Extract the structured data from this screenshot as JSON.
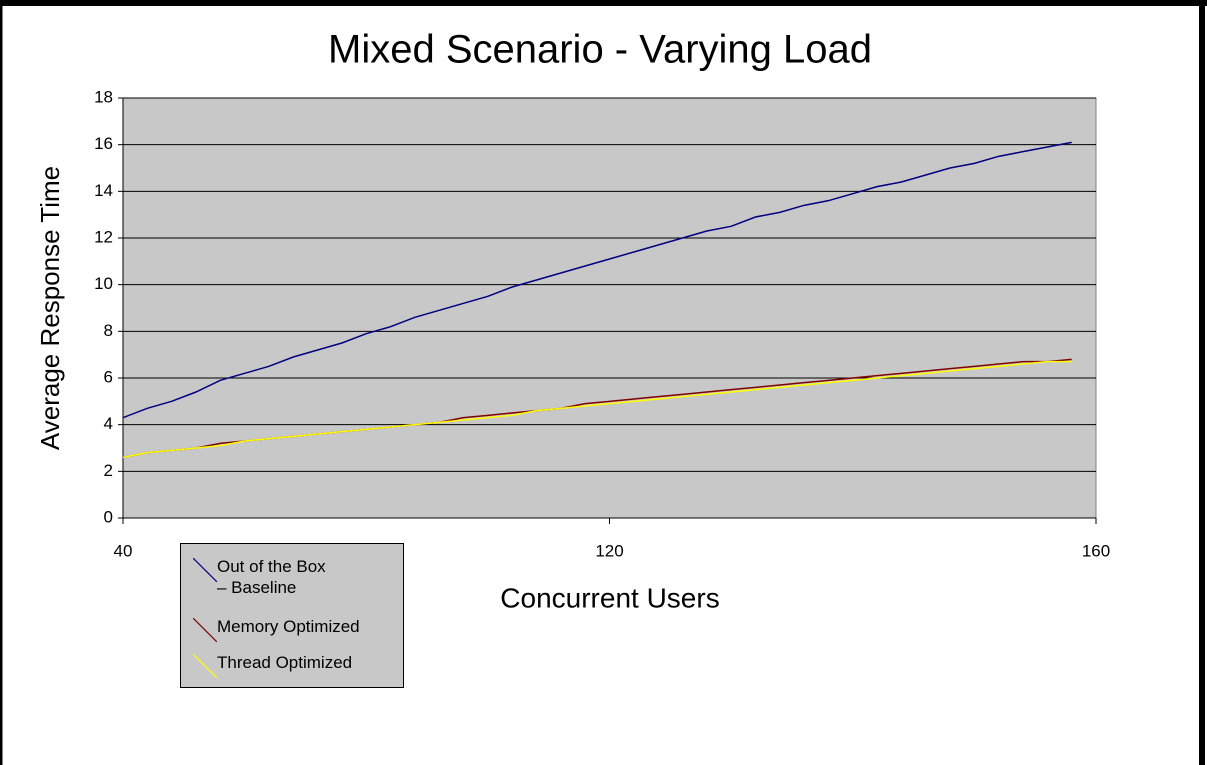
{
  "chart_data": {
    "type": "line",
    "title": "Mixed Scenario - Varying Load",
    "x_label": "Concurrent Users",
    "y_label": "Average Response Time",
    "categories": [
      "40",
      null,
      null,
      null,
      null,
      null,
      null,
      null,
      null,
      null,
      null,
      null,
      null,
      null,
      null,
      null,
      null,
      null,
      null,
      null,
      "120",
      null,
      null,
      null,
      null,
      null,
      null,
      null,
      null,
      null,
      null,
      null,
      null,
      null,
      null,
      null,
      null,
      null,
      null,
      null,
      "160"
    ],
    "series": [
      {
        "name": "Out of the Box – Baseline",
        "color": "#000080",
        "values": [
          4.3,
          4.7,
          5.0,
          5.4,
          5.9,
          6.2,
          6.5,
          6.9,
          7.2,
          7.5,
          7.9,
          8.2,
          8.6,
          8.9,
          9.2,
          9.5,
          9.9,
          10.2,
          10.5,
          10.8,
          11.1,
          11.4,
          11.7,
          12.0,
          12.3,
          12.5,
          12.9,
          13.1,
          13.4,
          13.6,
          13.9,
          14.2,
          14.4,
          14.7,
          15.0,
          15.2,
          15.5,
          15.7,
          15.9,
          16.1,
          null
        ]
      },
      {
        "name": "Memory Optimized",
        "color": "#800000",
        "values": [
          2.6,
          2.8,
          2.9,
          3.0,
          3.2,
          3.3,
          3.4,
          3.5,
          3.6,
          3.7,
          3.8,
          3.9,
          4.0,
          4.1,
          4.3,
          4.4,
          4.5,
          4.6,
          4.7,
          4.9,
          5.0,
          5.1,
          5.2,
          5.3,
          5.4,
          5.5,
          5.6,
          5.7,
          5.8,
          5.9,
          6.0,
          6.1,
          6.2,
          6.3,
          6.4,
          6.5,
          6.6,
          6.7,
          6.7,
          6.8,
          null
        ]
      },
      {
        "name": "Thread Optimized",
        "color": "#ffff00",
        "values": [
          2.6,
          2.8,
          2.9,
          3.0,
          3.1,
          3.3,
          3.4,
          3.5,
          3.6,
          3.7,
          3.8,
          3.9,
          4.0,
          4.1,
          4.2,
          4.3,
          4.4,
          4.6,
          4.7,
          4.8,
          4.9,
          5.0,
          5.1,
          5.2,
          5.3,
          5.4,
          5.5,
          5.6,
          5.7,
          5.8,
          5.9,
          6.0,
          6.1,
          6.2,
          6.3,
          6.4,
          6.5,
          6.6,
          6.7,
          6.7,
          null
        ]
      }
    ],
    "ylim": [
      0,
      18
    ],
    "yticks": [
      0,
      2,
      4,
      6,
      8,
      10,
      12,
      14,
      16,
      18
    ],
    "grid": true
  }
}
